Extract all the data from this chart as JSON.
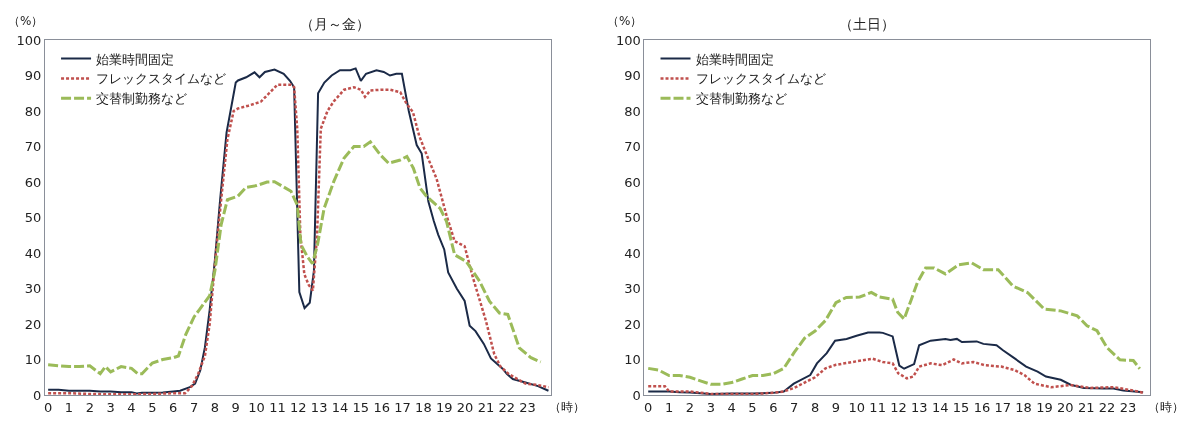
{
  "chart_data": [
    {
      "type": "line",
      "title": "（月～金）",
      "ylabel": "（%）",
      "xlabel": "（時）",
      "xlim": [
        -0.15,
        24.1
      ],
      "xticks": [
        0,
        1,
        2,
        3,
        4,
        5,
        6,
        7,
        8,
        9,
        10,
        11,
        12,
        13,
        14,
        15,
        16,
        17,
        18,
        19,
        20,
        21,
        22,
        23
      ],
      "ylim": [
        0,
        100
      ],
      "yticks": [
        0,
        10,
        20,
        30,
        40,
        50,
        60,
        70,
        80,
        90,
        100
      ],
      "legend": "top left",
      "marker": "none",
      "series": [
        {
          "name": "始業時間固定",
          "color": "#1b2a47",
          "line_style": "solid",
          "x": [
            0,
            0.5,
            1,
            2,
            2.5,
            3,
            3.5,
            4,
            4.25,
            4.5,
            5,
            5.5,
            6,
            6.33,
            6.8,
            7.05,
            7.3,
            7.52,
            7.75,
            8.0,
            8.25,
            8.56,
            8.75,
            9.0,
            9.11,
            9.5,
            9.9,
            10.14,
            10.4,
            10.86,
            11.3,
            11.6,
            11.8,
            12.05,
            12.3,
            12.55,
            12.75,
            12.95,
            13.25,
            13.6,
            14.0,
            14.5,
            14.75,
            15.0,
            15.25,
            15.75,
            16.1,
            16.4,
            16.7,
            16.97,
            17.3,
            17.68,
            17.92,
            18.24,
            18.5,
            18.71,
            19.0,
            19.19,
            19.6,
            19.98,
            20.22,
            20.5,
            20.9,
            21.24,
            21.8,
            22.0,
            22.29,
            22.9,
            23.5,
            24
          ],
          "values": [
            1.5,
            1.5,
            1.2,
            1.2,
            1,
            1,
            0.8,
            0.8,
            0.4,
            0.6,
            0.6,
            0.7,
            1,
            1.2,
            2.2,
            3.2,
            7,
            13.4,
            24,
            38,
            55,
            74,
            80,
            88,
            88.6,
            89.5,
            90.9,
            89.5,
            91,
            91.7,
            90.5,
            88.5,
            86.7,
            29,
            24.5,
            26,
            35,
            85,
            88,
            90,
            91.5,
            91.5,
            92,
            88.5,
            90.5,
            91.5,
            91,
            90,
            90.5,
            90.5,
            80,
            70.4,
            68,
            54.5,
            49,
            45.2,
            41,
            34.5,
            30,
            26.5,
            19.5,
            18,
            14.4,
            10.3,
            7.4,
            6,
            4.5,
            3.5,
            2.5,
            1.2
          ]
        },
        {
          "name": "フレックスタイムなど",
          "color": "#c0504d",
          "line_style": "dotted",
          "x": [
            0,
            1,
            2,
            3,
            4,
            5,
            6,
            6.57,
            6.9,
            7.2,
            7.52,
            7.75,
            8.0,
            8.3,
            8.6,
            8.9,
            9.11,
            9.6,
            10.2,
            10.6,
            11.0,
            11.65,
            11.8,
            11.95,
            12.1,
            12.29,
            12.5,
            12.7,
            12.9,
            13.08,
            13.4,
            13.7,
            14.2,
            14.67,
            15.0,
            15.2,
            15.46,
            16.0,
            16.4,
            16.89,
            17.2,
            17.5,
            17.8,
            18.16,
            18.63,
            19.1,
            19.5,
            19.98,
            20.38,
            21.0,
            21.4,
            21.7,
            22.1,
            22.9,
            23.5,
            24
          ],
          "values": [
            0.5,
            0.5,
            0.3,
            0.2,
            0.2,
            0.3,
            0.5,
            0.5,
            2.5,
            6,
            11,
            20,
            37,
            55,
            72,
            80,
            80.7,
            81.5,
            82.6,
            85,
            87.4,
            87.4,
            86.7,
            75,
            45,
            34,
            31,
            29.4,
            45,
            75,
            80,
            82.7,
            86,
            86.7,
            86,
            84,
            85.8,
            86,
            86,
            85.3,
            82,
            79.7,
            73,
            67.6,
            61,
            50.8,
            43.3,
            41.9,
            33,
            20.9,
            11.5,
            8,
            5.9,
            3.2,
            2.8,
            2.2
          ]
        },
        {
          "name": "交替制勤務など",
          "color": "#9bbb59",
          "line_style": "dashed",
          "x": [
            0,
            1,
            1.5,
            2,
            2.5,
            2.75,
            3,
            3.5,
            4,
            4.3,
            4.5,
            5,
            5.5,
            6,
            6.25,
            6.6,
            7.0,
            7.25,
            7.75,
            8.0,
            8.3,
            8.6,
            9.1,
            9.5,
            10.0,
            10.5,
            10.86,
            11.65,
            11.95,
            12.13,
            12.44,
            12.68,
            12.92,
            13.24,
            13.7,
            14.19,
            14.67,
            15.14,
            15.46,
            15.94,
            16.33,
            16.89,
            17.21,
            17.52,
            17.84,
            18.16,
            18.8,
            19.11,
            19.5,
            20.06,
            20.7,
            21.17,
            21.65,
            22.05,
            22.6,
            23.16,
            23.63
          ],
          "values": [
            8.5,
            8,
            8,
            8.2,
            6,
            8,
            6.5,
            8,
            7.5,
            6,
            6,
            9,
            10,
            10.5,
            11,
            17,
            22,
            24,
            28,
            35,
            48,
            55,
            56,
            58.5,
            59,
            60,
            60.1,
            57.4,
            53.5,
            42.3,
            38.9,
            37,
            42.3,
            52.6,
            60.1,
            66.7,
            70,
            70,
            71.3,
            67.6,
            65.3,
            66.2,
            67.2,
            63.9,
            58.3,
            55.9,
            52.6,
            48.9,
            39.5,
            37.6,
            32,
            26.4,
            23.1,
            22.7,
            13.3,
            10.5,
            9.3
          ]
        }
      ]
    },
    {
      "type": "line",
      "title": "（土日）",
      "ylabel": "（%）",
      "xlabel": "（時）",
      "xlim": [
        -0.18,
        24.06
      ],
      "xticks": [
        0,
        1,
        2,
        3,
        4,
        5,
        6,
        7,
        8,
        9,
        10,
        11,
        12,
        13,
        14,
        15,
        16,
        17,
        18,
        19,
        20,
        21,
        22,
        23
      ],
      "ylim": [
        0,
        100
      ],
      "yticks": [
        0,
        10,
        20,
        30,
        40,
        50,
        60,
        70,
        80,
        90,
        100
      ],
      "legend": "top left",
      "marker": "none",
      "series": [
        {
          "name": "始業時間固定",
          "color": "#1b2a47",
          "line_style": "solid",
          "x": [
            0,
            1,
            1.5,
            2,
            3,
            4,
            5,
            6,
            6.5,
            6.98,
            7.77,
            8.09,
            8.56,
            8.96,
            9.51,
            9.99,
            10.54,
            11.09,
            11.25,
            11.72,
            12.04,
            12.27,
            12.75,
            12.99,
            13.54,
            14.25,
            14.49,
            14.8,
            15.04,
            15.75,
            16.07,
            16.7,
            17.01,
            17.57,
            18.12,
            18.67,
            19.07,
            19.78,
            20.25,
            20.89,
            21.83,
            22.31,
            22.78,
            23.73
          ],
          "values": [
            1,
            1,
            0.8,
            0.7,
            0.3,
            0.4,
            0.4,
            0.6,
            1,
            3.2,
            5.6,
            8.9,
            11.8,
            15.3,
            15.8,
            16.7,
            17.6,
            17.6,
            17.5,
            16.5,
            8.3,
            7.4,
            8.7,
            14,
            15.3,
            15.8,
            15.5,
            15.8,
            14.9,
            15.1,
            14.4,
            14,
            12.6,
            10.3,
            8,
            6.6,
            5.2,
            4.3,
            2.9,
            2,
            1.8,
            1.8,
            1.3,
            0.8
          ]
        },
        {
          "name": "フレックスタイムなど",
          "color": "#c0504d",
          "line_style": "dotted",
          "x": [
            0,
            0.5,
            0.8,
            1,
            2,
            3,
            4,
            5,
            6,
            6.5,
            7,
            7.5,
            8,
            8.5,
            9,
            9.5,
            10,
            10.5,
            10.77,
            11.25,
            11.72,
            11.99,
            12.4,
            12.71,
            12.99,
            13.54,
            14.09,
            14.65,
            15.04,
            15.59,
            16.14,
            16.93,
            17.57,
            18.04,
            18.52,
            19.31,
            20.25,
            21.2,
            22.31,
            23.41,
            23.73
          ],
          "values": [
            2.5,
            2.5,
            2.5,
            1,
            1,
            0.3,
            0.3,
            0.3,
            0.6,
            1,
            2,
            3.5,
            5,
            7.5,
            8.5,
            9,
            9.5,
            10,
            10.2,
            9.3,
            8.9,
            6.1,
            4.7,
            5.2,
            8,
            8.9,
            8.4,
            10,
            8.9,
            9.3,
            8.4,
            8,
            7,
            5.6,
            3.2,
            2.2,
            2.8,
            2,
            2.2,
            1.1,
            0.6
          ]
        },
        {
          "name": "交替制勤務など",
          "color": "#9bbb59",
          "line_style": "dashed",
          "x": [
            0,
            0.5,
            1,
            1.5,
            2,
            2.5,
            3,
            3.5,
            4,
            4.5,
            5,
            5.5,
            6,
            6.5,
            7,
            7.5,
            8,
            8.5,
            9,
            9.5,
            10.14,
            10.7,
            11.09,
            11.72,
            11.96,
            12.27,
            12.59,
            12.9,
            13.3,
            13.7,
            14.25,
            14.88,
            15.51,
            16.07,
            16.78,
            17.49,
            18.2,
            18.99,
            19.78,
            20.57,
            21.04,
            21.52,
            21.99,
            22.62,
            23.26,
            23.57
          ],
          "values": [
            7.5,
            7,
            5.5,
            5.5,
            5,
            4,
            3,
            3,
            3.5,
            4.5,
            5.5,
            5.5,
            6,
            7.5,
            12,
            16,
            18,
            21,
            26,
            27.5,
            27.6,
            28.9,
            27.6,
            27,
            23.3,
            21.4,
            26.5,
            31.6,
            35.8,
            35.8,
            34.1,
            36.7,
            37.2,
            35.3,
            35.3,
            30.7,
            28.8,
            24.2,
            23.7,
            22.3,
            19.5,
            18.1,
            13.4,
            9.9,
            9.7,
            7.4
          ]
        }
      ]
    }
  ]
}
